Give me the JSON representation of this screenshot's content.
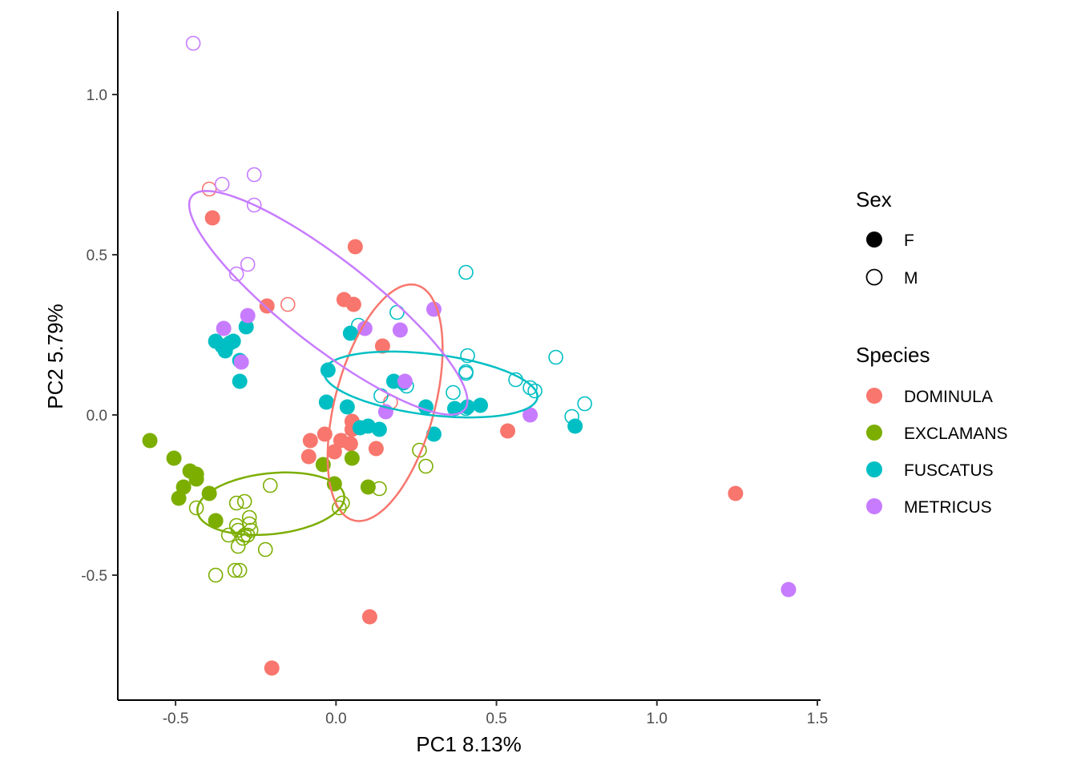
{
  "chart_data": {
    "type": "scatter",
    "xlabel": "PC1 8.13%",
    "ylabel": "PC2 5.79%",
    "xlim": [
      -0.68,
      1.51
    ],
    "ylim": [
      -0.89,
      1.26
    ],
    "x_ticks": [
      -0.5,
      0.0,
      0.5,
      1.0,
      1.5
    ],
    "x_tick_labels": [
      "-0.5",
      "0.0",
      "0.5",
      "1.0",
      "1.5"
    ],
    "y_ticks": [
      -0.5,
      0.0,
      0.5,
      1.0
    ],
    "y_tick_labels": [
      "-0.5",
      "0.0",
      "0.5",
      "1.0"
    ],
    "grid": false,
    "legend_placement": "right",
    "legends": [
      {
        "title": "Sex",
        "kind": "shape",
        "entries": [
          {
            "key": "F",
            "label": "F",
            "filled": true
          },
          {
            "key": "M",
            "label": "M",
            "filled": false
          }
        ]
      },
      {
        "title": "Species",
        "kind": "color",
        "entries": [
          {
            "key": "DOMINULA",
            "label": "DOMINULA",
            "color": "#F8766D"
          },
          {
            "key": "EXCLAMANS",
            "label": "EXCLAMANS",
            "color": "#7CAE00"
          },
          {
            "key": "FUSCATUS",
            "label": "FUSCATUS",
            "color": "#00BFC4"
          },
          {
            "key": "METRICUS",
            "label": "METRICUS",
            "color": "#C77CFF"
          }
        ]
      }
    ],
    "colors": {
      "DOMINULA": "#F8766D",
      "EXCLAMANS": "#7CAE00",
      "FUSCATUS": "#00BFC4",
      "METRICUS": "#C77CFF"
    },
    "ellipses": [
      {
        "species": "DOMINULA",
        "cx": 0.153,
        "cy": 0.038,
        "rx": 0.38,
        "ry": 0.155,
        "angle_deg": 75
      },
      {
        "species": "EXCLAMANS",
        "cx": -0.203,
        "cy": -0.277,
        "rx": 0.23,
        "ry": 0.095,
        "angle_deg": 6
      },
      {
        "species": "FUSCATUS",
        "cx": 0.295,
        "cy": 0.095,
        "rx": 0.335,
        "ry": 0.095,
        "angle_deg": -7
      },
      {
        "species": "METRICUS",
        "cx": -0.024,
        "cy": 0.35,
        "rx": 0.54,
        "ry": 0.135,
        "angle_deg": -38
      }
    ],
    "series": [
      {
        "species": "DOMINULA",
        "sex": "F",
        "points": [
          [
            -0.385,
            0.615
          ],
          [
            0.06,
            0.525
          ],
          [
            -0.215,
            0.34
          ],
          [
            0.025,
            0.36
          ],
          [
            0.055,
            0.345
          ],
          [
            0.145,
            0.215
          ],
          [
            -0.08,
            -0.08
          ],
          [
            -0.035,
            -0.06
          ],
          [
            -0.005,
            -0.115
          ],
          [
            0.05,
            -0.02
          ],
          [
            0.05,
            -0.045
          ],
          [
            0.045,
            -0.09
          ],
          [
            0.015,
            -0.08
          ],
          [
            0.125,
            -0.105
          ],
          [
            -0.085,
            -0.13
          ],
          [
            0.535,
            -0.05
          ],
          [
            1.245,
            -0.245
          ],
          [
            0.105,
            -0.63
          ],
          [
            -0.2,
            -0.79
          ]
        ]
      },
      {
        "species": "DOMINULA",
        "sex": "M",
        "points": [
          [
            -0.395,
            0.705
          ],
          [
            -0.15,
            0.345
          ],
          [
            0.17,
            0.04
          ],
          [
            0.035,
            -0.08
          ]
        ]
      },
      {
        "species": "EXCLAMANS",
        "sex": "F",
        "points": [
          [
            -0.58,
            -0.08
          ],
          [
            -0.505,
            -0.135
          ],
          [
            -0.455,
            -0.175
          ],
          [
            -0.435,
            -0.185
          ],
          [
            -0.435,
            -0.2
          ],
          [
            -0.475,
            -0.225
          ],
          [
            -0.49,
            -0.26
          ],
          [
            -0.395,
            -0.245
          ],
          [
            -0.375,
            -0.33
          ],
          [
            -0.04,
            -0.155
          ],
          [
            -0.005,
            -0.215
          ],
          [
            0.1,
            -0.225
          ],
          [
            0.05,
            -0.135
          ]
        ]
      },
      {
        "species": "EXCLAMANS",
        "sex": "M",
        "points": [
          [
            -0.435,
            -0.29
          ],
          [
            -0.31,
            -0.275
          ],
          [
            -0.285,
            -0.27
          ],
          [
            -0.27,
            -0.32
          ],
          [
            -0.27,
            -0.34
          ],
          [
            -0.31,
            -0.345
          ],
          [
            -0.305,
            -0.36
          ],
          [
            -0.265,
            -0.36
          ],
          [
            -0.285,
            -0.375
          ],
          [
            -0.335,
            -0.375
          ],
          [
            -0.29,
            -0.385
          ],
          [
            -0.305,
            -0.41
          ],
          [
            -0.275,
            -0.375
          ],
          [
            -0.22,
            -0.42
          ],
          [
            -0.375,
            -0.5
          ],
          [
            -0.315,
            -0.485
          ],
          [
            -0.3,
            -0.485
          ],
          [
            -0.205,
            -0.22
          ],
          [
            0.02,
            -0.275
          ],
          [
            0.01,
            -0.29
          ],
          [
            0.135,
            -0.23
          ],
          [
            0.26,
            -0.11
          ],
          [
            0.28,
            -0.16
          ]
        ]
      },
      {
        "species": "FUSCATUS",
        "sex": "F",
        "points": [
          [
            -0.375,
            0.23
          ],
          [
            -0.355,
            0.215
          ],
          [
            -0.345,
            0.2
          ],
          [
            -0.33,
            0.225
          ],
          [
            -0.32,
            0.23
          ],
          [
            -0.28,
            0.275
          ],
          [
            -0.3,
            0.17
          ],
          [
            -0.3,
            0.105
          ],
          [
            -0.025,
            0.14
          ],
          [
            -0.03,
            0.04
          ],
          [
            0.035,
            0.025
          ],
          [
            0.045,
            0.255
          ],
          [
            0.075,
            -0.04
          ],
          [
            0.1,
            -0.035
          ],
          [
            0.135,
            -0.045
          ],
          [
            0.18,
            0.105
          ],
          [
            0.21,
            0.1
          ],
          [
            0.28,
            0.025
          ],
          [
            0.37,
            0.02
          ],
          [
            0.41,
            0.025
          ],
          [
            0.45,
            0.03
          ],
          [
            0.305,
            -0.06
          ],
          [
            0.745,
            -0.035
          ]
        ]
      },
      {
        "species": "FUSCATUS",
        "sex": "M",
        "points": [
          [
            0.405,
            0.445
          ],
          [
            0.19,
            0.32
          ],
          [
            0.07,
            0.28
          ],
          [
            0.41,
            0.185
          ],
          [
            0.405,
            0.135
          ],
          [
            0.405,
            0.13
          ],
          [
            0.56,
            0.11
          ],
          [
            0.605,
            0.085
          ],
          [
            0.62,
            0.075
          ],
          [
            0.685,
            0.18
          ],
          [
            0.775,
            0.035
          ],
          [
            0.735,
            -0.005
          ],
          [
            0.365,
            0.07
          ],
          [
            0.405,
            0.02
          ],
          [
            0.22,
            0.09
          ],
          [
            0.14,
            0.06
          ]
        ]
      },
      {
        "species": "METRICUS",
        "sex": "F",
        "points": [
          [
            -0.35,
            0.27
          ],
          [
            -0.275,
            0.31
          ],
          [
            -0.295,
            0.165
          ],
          [
            0.09,
            0.27
          ],
          [
            0.2,
            0.265
          ],
          [
            0.215,
            0.105
          ],
          [
            0.155,
            0.01
          ],
          [
            0.305,
            0.33
          ],
          [
            0.605,
            0.0
          ],
          [
            1.41,
            -0.545
          ]
        ]
      },
      {
        "species": "METRICUS",
        "sex": "M",
        "points": [
          [
            -0.445,
            1.16
          ],
          [
            -0.355,
            0.72
          ],
          [
            -0.255,
            0.75
          ],
          [
            -0.255,
            0.655
          ],
          [
            -0.275,
            0.47
          ],
          [
            -0.31,
            0.44
          ]
        ]
      }
    ]
  }
}
